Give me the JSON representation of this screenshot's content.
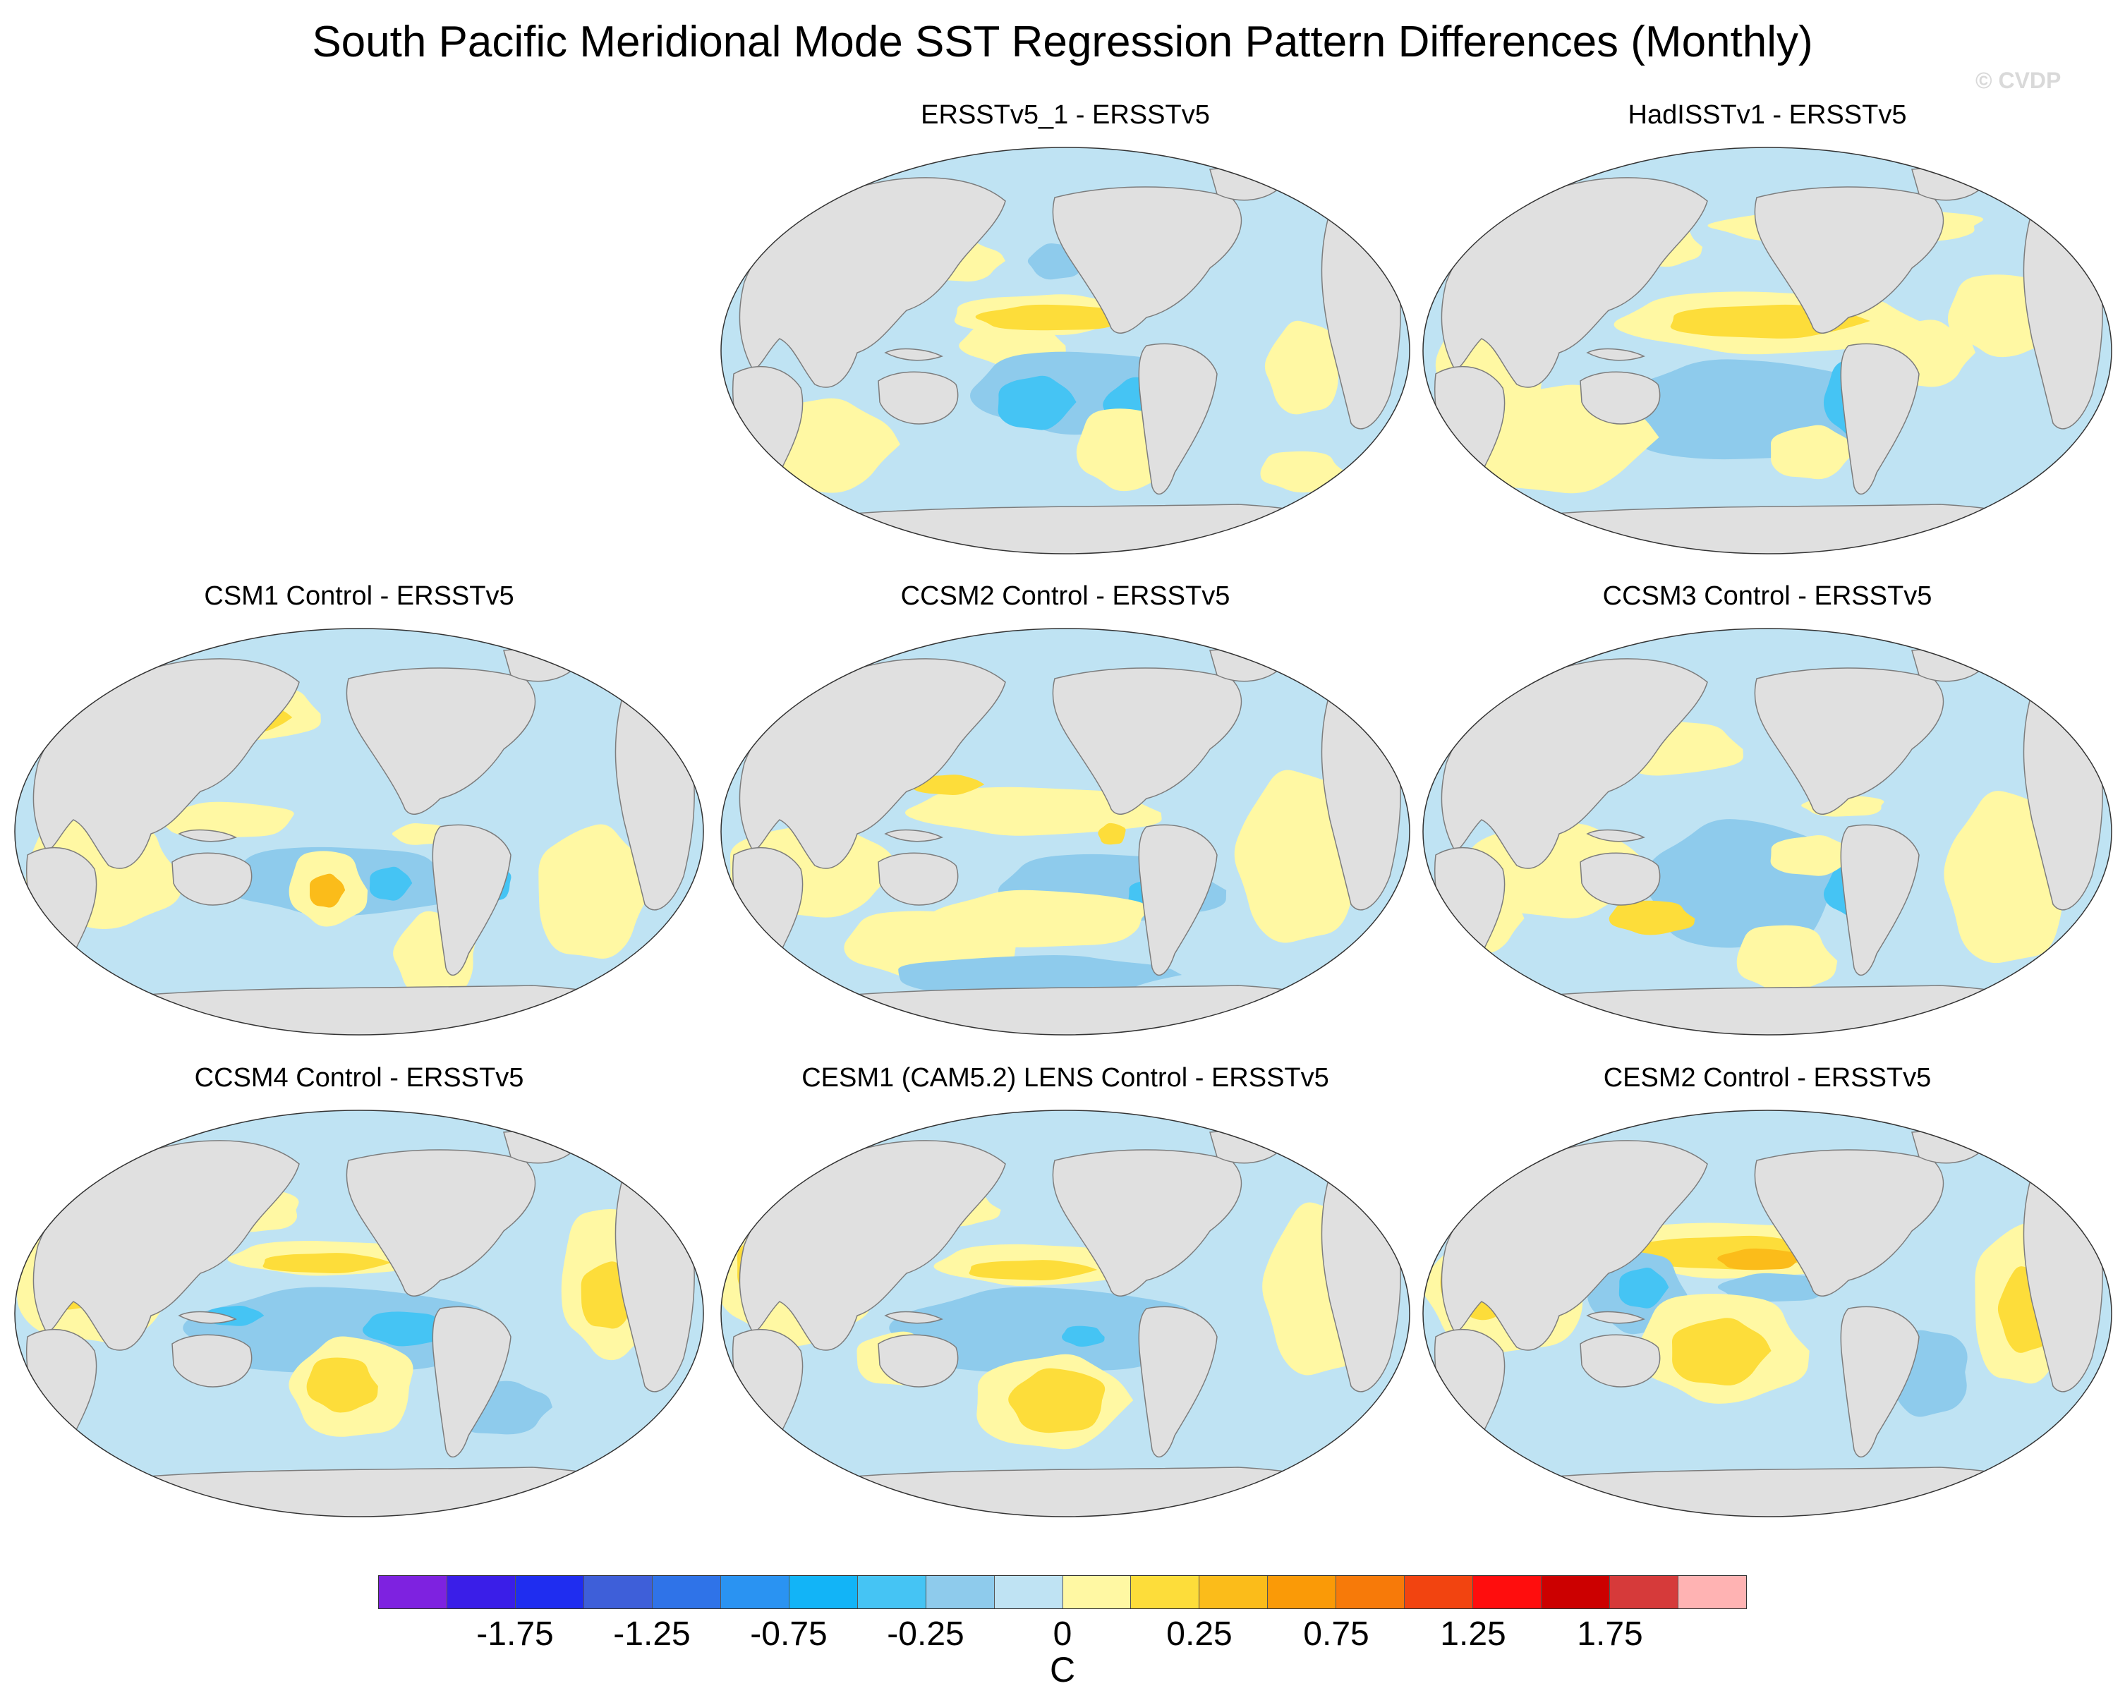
{
  "title": "South Pacific Meridional Mode SST Regression Pattern Differences (Monthly)",
  "watermark": "© CVDP",
  "panels": [
    {
      "id": "ersst-1",
      "title": "ERSSTv5_1 - ERSSTv5"
    },
    {
      "id": "hadisst",
      "title": "HadISSTv1 - ERSSTv5"
    },
    {
      "id": "csm1",
      "title": "CSM1 Control - ERSSTv5"
    },
    {
      "id": "ccsm2",
      "title": "CCSM2 Control - ERSSTv5"
    },
    {
      "id": "ccsm3",
      "title": "CCSM3 Control - ERSSTv5"
    },
    {
      "id": "ccsm4",
      "title": "CCSM4 Control - ERSSTv5"
    },
    {
      "id": "cesm1",
      "title": "CESM1 (CAM5.2) LENS Control - ERSSTv5"
    },
    {
      "id": "cesm2",
      "title": "CESM2 Control - ERSSTv5"
    }
  ],
  "colorbar": {
    "colors": [
      "#7e22e0",
      "#3a1ee8",
      "#1f2df0",
      "#3e5fd9",
      "#2f73e8",
      "#2a93f2",
      "#12b4f7",
      "#45c4f4",
      "#8ecbec",
      "#bfe3f3",
      "#fff8a3",
      "#fddd3a",
      "#fbbc1a",
      "#fa9a07",
      "#f77a09",
      "#f24410",
      "#ff0d0d",
      "#cc0000",
      "#d63a3a",
      "#ffb3b3"
    ],
    "labels": [
      "-1.75",
      "-1.25",
      "-0.75",
      "-0.25",
      "0",
      "0.25",
      "0.75",
      "1.25",
      "1.75"
    ],
    "units": "C"
  }
}
